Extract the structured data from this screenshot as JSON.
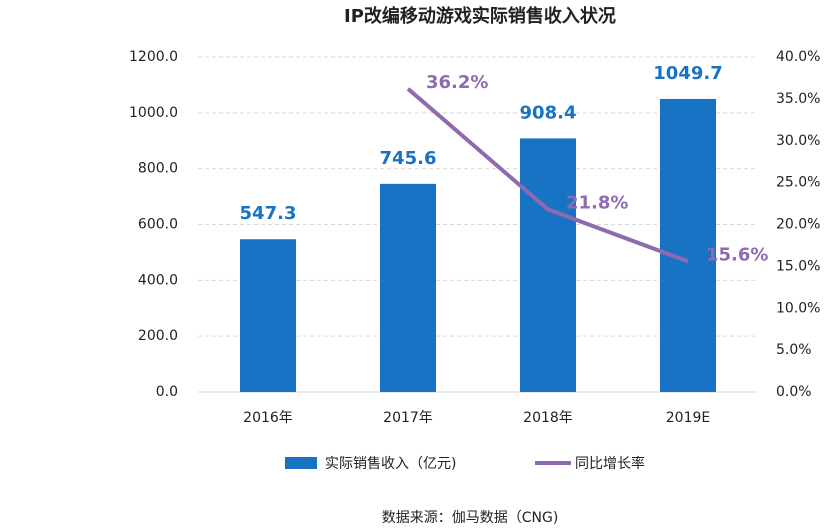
{
  "chart_data": {
    "type": "bar",
    "title": "IP改编移动游戏实际销售收入状况",
    "categories": [
      "2016年",
      "2017年",
      "2018年",
      "2019E"
    ],
    "series": [
      {
        "name": "实际销售收入（亿元)",
        "type": "bar",
        "color": "#1873c5",
        "values": [
          547.3,
          745.6,
          908.4,
          1049.7
        ]
      },
      {
        "name": "同比增长率",
        "type": "line",
        "axis": "y2",
        "color": "#8e6bb0",
        "values": [
          null,
          36.2,
          21.8,
          15.6
        ],
        "value_labels": [
          null,
          "36.2%",
          "21.8%",
          "15.6%"
        ]
      }
    ],
    "ylim": [
      0,
      1200
    ],
    "yticks": [
      {
        "value": 0,
        "label": "0.0"
      },
      {
        "value": 200,
        "label": "200.0"
      },
      {
        "value": 400,
        "label": "400.0"
      },
      {
        "value": 600,
        "label": "600.0"
      },
      {
        "value": 800,
        "label": "800.0"
      },
      {
        "value": 1000,
        "label": "1000.0"
      },
      {
        "value": 1200,
        "label": "1200.0"
      }
    ],
    "y2lim": [
      0,
      40
    ],
    "y2ticks": [
      {
        "value": 0,
        "label": "0.0%"
      },
      {
        "value": 5,
        "label": "5.0%"
      },
      {
        "value": 10,
        "label": "10.0%"
      },
      {
        "value": 15,
        "label": "15.0%"
      },
      {
        "value": 20,
        "label": "20.0%"
      },
      {
        "value": 25,
        "label": "25.0%"
      },
      {
        "value": 30,
        "label": "30.0%"
      },
      {
        "value": 35,
        "label": "35.0%"
      },
      {
        "value": 40,
        "label": "40.0%"
      }
    ],
    "grid": true,
    "legend": "bottom",
    "source": "数据来源：伽马数据（CNG)"
  }
}
